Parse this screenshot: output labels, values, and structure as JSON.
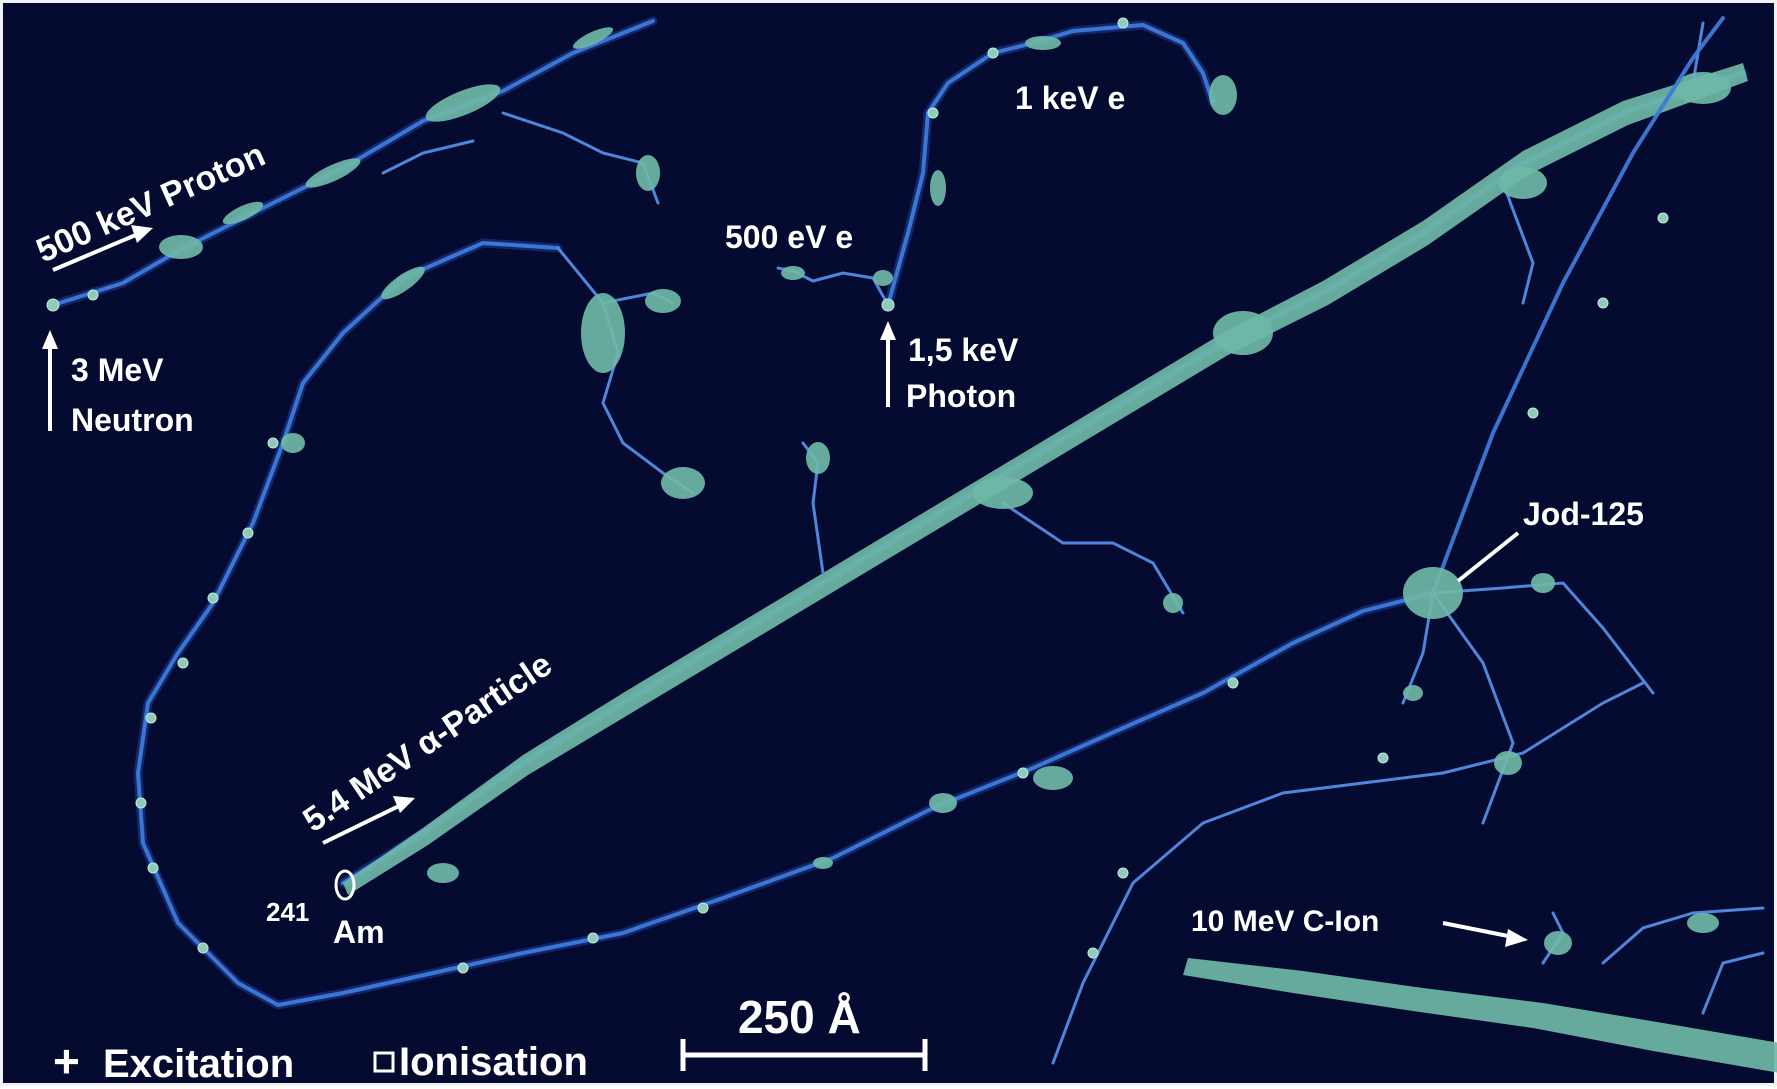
{
  "labels": {
    "proton": "500 keV Proton",
    "neutron_line1": "3 MeV",
    "neutron_line2": "Neutron",
    "e1kev": "1 keV e",
    "e500ev": "500 eV e",
    "photon_line1": "1,5 keV",
    "photon_line2": "Photon",
    "alpha": "5.4 MeV α-Particle",
    "am_sup": "241",
    "am": "Am",
    "jod": "Jod-125",
    "cion": "10 MeV C-Ion",
    "scale": "250 Å"
  },
  "legend": {
    "excitation_symbol": "+",
    "excitation": "Excitation",
    "ionisation": "Ionisation"
  },
  "colors": {
    "background": "#050a30",
    "track": "#3d7ad8",
    "event": "#93c9b8",
    "text": "#ffffff"
  }
}
